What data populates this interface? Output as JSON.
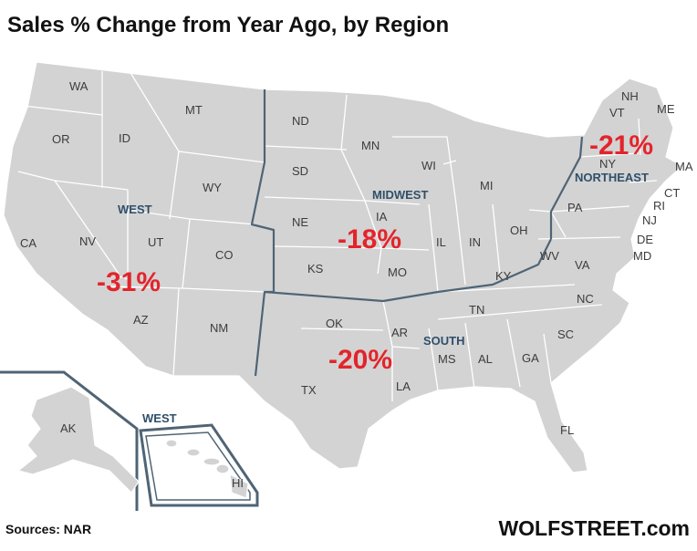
{
  "title": "Sales % Change from Year Ago, by Region",
  "regions": [
    {
      "name": "WEST",
      "change": "-31%"
    },
    {
      "name": "MIDWEST",
      "change": "-18%"
    },
    {
      "name": "SOUTH",
      "change": "-20%"
    },
    {
      "name": "NORTHEAST",
      "change": "-21%"
    }
  ],
  "inset_region": "WEST",
  "states": {
    "WA": "WA",
    "OR": "OR",
    "CA": "CA",
    "ID": "ID",
    "NV": "NV",
    "MT": "MT",
    "WY": "WY",
    "UT": "UT",
    "CO": "CO",
    "AZ": "AZ",
    "NM": "NM",
    "ND": "ND",
    "SD": "SD",
    "NE": "NE",
    "KS": "KS",
    "MN": "MN",
    "IA": "IA",
    "MO": "MO",
    "WI": "WI",
    "IL": "IL",
    "MI": "MI",
    "IN": "IN",
    "OH": "OH",
    "OK": "OK",
    "TX": "TX",
    "AR": "AR",
    "LA": "LA",
    "MS": "MS",
    "AL": "AL",
    "TN": "TN",
    "KY": "KY",
    "GA": "GA",
    "FL": "FL",
    "SC": "SC",
    "NC": "NC",
    "VA": "VA",
    "WV": "WV",
    "MD": "MD",
    "DE": "DE",
    "PA": "PA",
    "NY": "NY",
    "NJ": "NJ",
    "CT": "CT",
    "RI": "RI",
    "MA": "MA",
    "VT": "VT",
    "NH": "NH",
    "ME": "ME",
    "AK": "AK",
    "HI": "HI"
  },
  "source": "Sources: NAR",
  "brand": "WOLFSTREET.com",
  "colors": {
    "land": "#d3d3d3",
    "region_border": "#4f6475",
    "change_text": "#e3242b",
    "region_label": "#2f4f6a"
  }
}
